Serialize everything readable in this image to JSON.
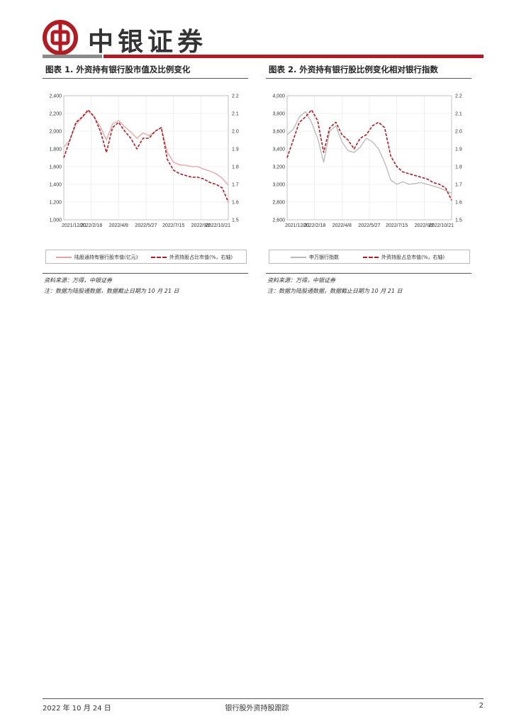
{
  "header": {
    "brand": "中银证券"
  },
  "figures": [
    {
      "title": "图表 1. 外资持有银行股市值及比例变化",
      "source": "资料来源：万得，中银证券",
      "note": "注：数据为陆股通数据，数据截止日期为 10 月 21 日"
    },
    {
      "title": "图表 2. 外资持有银行股比例变化相对银行指数",
      "source": "资料来源：万得，中银证券",
      "note": "注：数据为陆股通数据，数据截止日期为 10 月 21 日"
    }
  ],
  "chart_data": [
    {
      "type": "line",
      "x_ticks": [
        "2021/12/31",
        "2022/2/18",
        "2022/4/8",
        "2022/5/27",
        "2022/7/15",
        "2022/9/2",
        "2022/10/21"
      ],
      "ylim": [
        1000,
        2400
      ],
      "y_ticks": [
        "1,000",
        "1,200",
        "1,400",
        "1,600",
        "1,800",
        "2,000",
        "2,200",
        "2,400"
      ],
      "y2lim": [
        1.5,
        2.2
      ],
      "y2_ticks": [
        "1.5",
        "1.6",
        "1.7",
        "1.8",
        "1.9",
        "2.0",
        "2.1",
        "2.2"
      ],
      "grid": true,
      "legend_position": "bottom",
      "series": [
        {
          "name": "陆股通持有银行股市值(亿元)",
          "axis": "left",
          "color": "#e8a0a0",
          "style": "solid",
          "values": [
            1820,
            1900,
            2080,
            2150,
            2230,
            2160,
            2050,
            1900,
            2080,
            2120,
            2050,
            1990,
            1920,
            1980,
            1950,
            2000,
            2040,
            1760,
            1650,
            1620,
            1615,
            1600,
            1600,
            1570,
            1550,
            1520,
            1470,
            1390
          ]
        },
        {
          "name": "外资持股占比市值(%，右轴)",
          "axis": "right",
          "color": "#b11c24",
          "style": "dashed",
          "values": [
            1.85,
            1.95,
            2.05,
            2.08,
            2.12,
            2.08,
            2.0,
            1.88,
            2.02,
            2.05,
            2.0,
            1.96,
            1.9,
            1.96,
            1.96,
            2.0,
            2.02,
            1.84,
            1.78,
            1.76,
            1.75,
            1.74,
            1.74,
            1.73,
            1.71,
            1.7,
            1.68,
            1.6
          ]
        }
      ]
    },
    {
      "type": "line",
      "x_ticks": [
        "2021/12/31",
        "2022/2/18",
        "2022/4/8",
        "2022/5/27",
        "2022/7/15",
        "2022/9/2",
        "2022/10/21"
      ],
      "ylim": [
        2600,
        4000
      ],
      "y_ticks": [
        "2,600",
        "2,800",
        "3,000",
        "3,200",
        "3,400",
        "3,600",
        "3,800",
        "4,000"
      ],
      "y2lim": [
        1.5,
        2.2
      ],
      "y2_ticks": [
        "1.5",
        "1.6",
        "1.7",
        "1.8",
        "1.9",
        "2.0",
        "2.1",
        "2.2"
      ],
      "grid": true,
      "legend_position": "bottom",
      "series": [
        {
          "name": "申万银行指数",
          "axis": "left",
          "color": "#b8b8b8",
          "style": "solid",
          "values": [
            3560,
            3620,
            3760,
            3820,
            3700,
            3520,
            3250,
            3600,
            3660,
            3480,
            3380,
            3360,
            3420,
            3520,
            3480,
            3400,
            3250,
            3050,
            3000,
            3030,
            3000,
            3010,
            3020,
            3000,
            2980,
            2960,
            2930,
            2900
          ]
        },
        {
          "name": "外资持股占总市值(%，右轴)",
          "axis": "right",
          "color": "#b11c24",
          "style": "dashed",
          "values": [
            1.85,
            1.95,
            2.05,
            2.08,
            2.12,
            2.06,
            1.88,
            2.02,
            2.05,
            1.98,
            1.95,
            1.9,
            1.96,
            1.98,
            2.03,
            2.05,
            2.02,
            1.86,
            1.8,
            1.77,
            1.76,
            1.75,
            1.74,
            1.73,
            1.71,
            1.7,
            1.68,
            1.61
          ]
        }
      ]
    }
  ],
  "footer": {
    "date": "2022 年 10 月 24 日",
    "title": "银行股外资持股跟踪",
    "page": "2"
  }
}
